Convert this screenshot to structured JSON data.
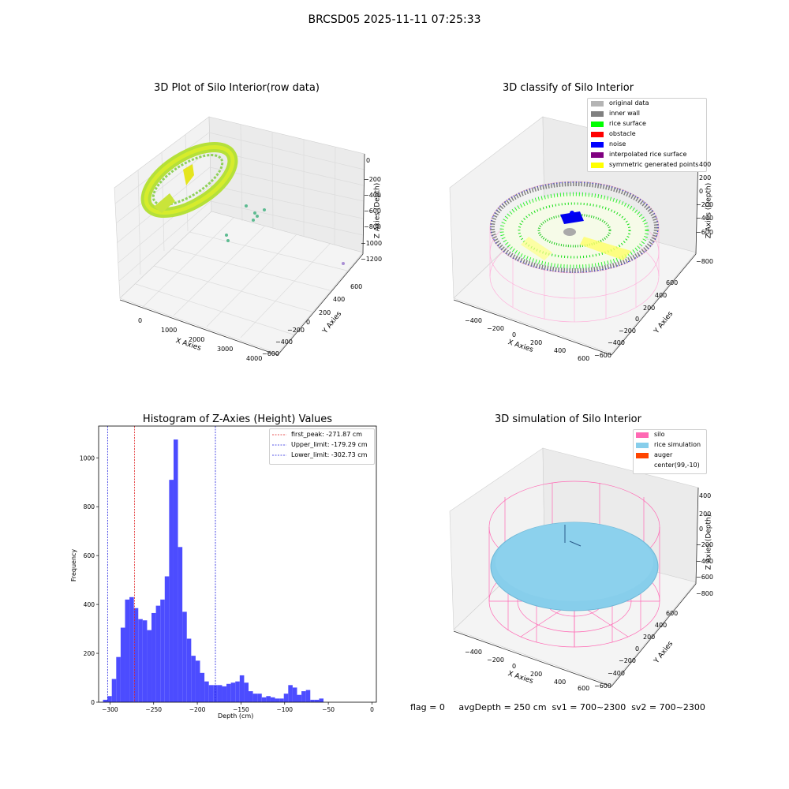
{
  "figure": {
    "suptitle": "BRCSD05 2025-11-11 07:25:33",
    "footer_text": "flag = 0     avgDepth = 250 cm  sv1 = 700~2300  sv2 = 700~2300"
  },
  "panels": {
    "raw": {
      "title": "3D Plot of Silo Interior(row data)",
      "xlabel": "X Axies",
      "ylabel": "Y Axies",
      "zlabel": "Z Axies (Depth)",
      "xticks": [
        "0",
        "1000",
        "2000",
        "3000",
        "4000"
      ],
      "yticks": [
        "600",
        "400",
        "200",
        "0",
        "−200",
        "−400",
        "−600"
      ],
      "zticks": [
        "0",
        "−200",
        "−400",
        "−600",
        "−800",
        "−1000",
        "−1200"
      ]
    },
    "classify": {
      "title": "3D classify of Silo Interior",
      "xlabel": "X Axies",
      "ylabel": "Y Axies",
      "zlabel": "Z Axies (Depth)",
      "xticks": [
        "−400",
        "−200",
        "0",
        "200",
        "400",
        "600"
      ],
      "yticks": [
        "600",
        "400",
        "200",
        "0",
        "−200",
        "−400",
        "−600"
      ],
      "zticks": [
        "400",
        "200",
        "0",
        "−200",
        "−400",
        "−600",
        "−800"
      ],
      "legend": [
        {
          "label": "original data",
          "color": "#b4b4b4"
        },
        {
          "label": "inner wall",
          "color": "#808080"
        },
        {
          "label": "rice surface",
          "color": "#00ff00"
        },
        {
          "label": "obstacle",
          "color": "#ff0000"
        },
        {
          "label": "noise",
          "color": "#0000ff"
        },
        {
          "label": "interpolated rice surface",
          "color": "#800080"
        },
        {
          "label": "symmetric generated points",
          "color": "#ffff00"
        }
      ]
    },
    "simulation": {
      "title": "3D simulation of Silo Interior",
      "xlabel": "X Axies",
      "ylabel": "Y Axies",
      "zlabel": "Z Axies (Depth)",
      "xticks": [
        "−400",
        "−200",
        "0",
        "200",
        "400",
        "600"
      ],
      "yticks": [
        "600",
        "400",
        "200",
        "0",
        "−200",
        "−400",
        "−600"
      ],
      "zticks": [
        "400",
        "200",
        "0",
        "−200",
        "−400",
        "−600",
        "−800"
      ],
      "legend": [
        {
          "label": "silo",
          "color": "#ff69b4"
        },
        {
          "label": "rice simulation",
          "color": "#87ceeb"
        },
        {
          "label": "auger",
          "color": "#ff4500"
        },
        {
          "label": "center(99,-10)",
          "color": "#ffffff"
        }
      ]
    }
  },
  "chart_data": {
    "type": "bar",
    "title": "Histogram of Z-Axies (Height) Values",
    "xlabel": "Depth (cm)",
    "ylabel": "Frequency",
    "xlim": [
      -313,
      5
    ],
    "ylim": [
      0,
      1130
    ],
    "xticks": [
      -300,
      -250,
      -200,
      -150,
      -100,
      -50,
      0
    ],
    "yticks": [
      0,
      200,
      400,
      600,
      800,
      1000
    ],
    "bin_start": -308,
    "bin_width": 5.05,
    "values": [
      10,
      25,
      95,
      185,
      305,
      420,
      430,
      385,
      340,
      335,
      295,
      365,
      395,
      420,
      515,
      910,
      1075,
      635,
      370,
      260,
      190,
      170,
      120,
      85,
      70,
      70,
      70,
      65,
      75,
      80,
      85,
      110,
      80,
      45,
      35,
      35,
      20,
      25,
      20,
      15,
      15,
      35,
      70,
      60,
      30,
      45,
      50,
      10,
      10,
      15
    ],
    "bar_color": "#4c4cff",
    "lines": [
      {
        "label": "first_peak: -271.87 cm",
        "x": -271.87,
        "color": "#e02020"
      },
      {
        "label": "Upper_limit: -179.29 cm",
        "x": -179.29,
        "color": "#2020e0"
      },
      {
        "label": "Lower_limit: -302.73 cm",
        "x": -302.73,
        "color": "#2020e0"
      }
    ],
    "legend_position": "upper right"
  }
}
